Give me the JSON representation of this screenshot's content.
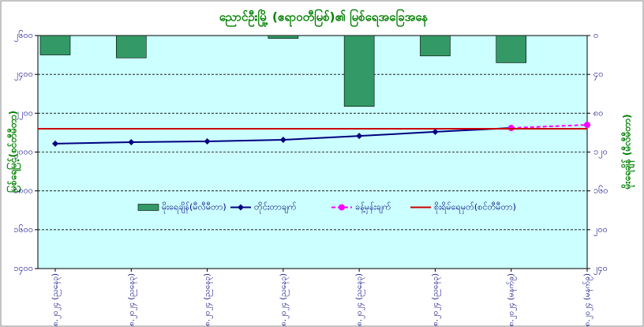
{
  "chart_data": {
    "type": "combo",
    "title": "ညောင်ဦးမြို့ (ဧရာဝတီမြစ်)၏ မြစ်ရေအခြေအနေ",
    "y_label": "မြစ်ရေမြင့်(စင်တီမီတာ)",
    "y2_label": "မိုးရေချိန် (မီလီမီတာ)",
    "categories": [
      "၂၀.၈.၂၀၂၄ (ညနေ၃)",
      "၂၁.၈.၂၀၂၄ (ညနေ၃)",
      "၂၂.၈.၂၀၂၄ (ညနေ၃)",
      "၂၃.၈.၂၀၂၄ (ညနေ၃)",
      "၂၄.၈.၂၀၂၄ (ညနေ၃)",
      "၂၅.၈.၂၀၂၄ (ညနေ၃)",
      "၂၆.၈.၂၀၂၄ (မနက်၉)",
      "၂၇.၈.၂၀၂၄ (မနက်၉)"
    ],
    "series": [
      {
        "name": "မိုးရေချိန်(မီလီမီတာ)",
        "type": "bar",
        "axis": "y2",
        "color": "#339966",
        "values": [
          20,
          23,
          0,
          3,
          73,
          21,
          28,
          0
        ]
      },
      {
        "name": "တိုင်းတာချက်",
        "type": "line",
        "marker": "diamond",
        "color": "#000080",
        "values": [
          2043,
          2051,
          2055,
          2063,
          2083,
          2104,
          2124,
          null
        ]
      },
      {
        "name": "ခန့်မှန်းချက်",
        "type": "line",
        "marker": "circle",
        "dashed": true,
        "color": "#ff00ff",
        "values": [
          null,
          null,
          null,
          null,
          null,
          null,
          2124,
          2140
        ]
      }
    ],
    "reference_line": {
      "name": "စိုးရိမ်ရေမှတ်(စင်တီမီတာ)",
      "color": "#cc0000",
      "value": 2120
    },
    "ylim": [
      1400,
      2600
    ],
    "yticks": [
      {
        "value": 1400,
        "label": "၁၄၀၀"
      },
      {
        "value": 1600,
        "label": "၁၆၀၀"
      },
      {
        "value": 1800,
        "label": "၁၈၀၀"
      },
      {
        "value": 2000,
        "label": "၂၀၀၀"
      },
      {
        "value": 2200,
        "label": "၂၂၀၀"
      },
      {
        "value": 2400,
        "label": "၂၄၀၀"
      },
      {
        "value": 2600,
        "label": "၂၆၀၀"
      }
    ],
    "y2lim": [
      0,
      240
    ],
    "y2_reversed": true,
    "y2ticks": [
      {
        "value": 0,
        "label": "၀"
      },
      {
        "value": 40,
        "label": "၄၀"
      },
      {
        "value": 80,
        "label": "၈၀"
      },
      {
        "value": 120,
        "label": "၁၂၀"
      },
      {
        "value": 160,
        "label": "၁၆၀"
      },
      {
        "value": 200,
        "label": "၂၀၀"
      },
      {
        "value": 240,
        "label": "၂၄၀"
      }
    ],
    "grid": true,
    "legend": "center",
    "background": "#ccffff"
  }
}
